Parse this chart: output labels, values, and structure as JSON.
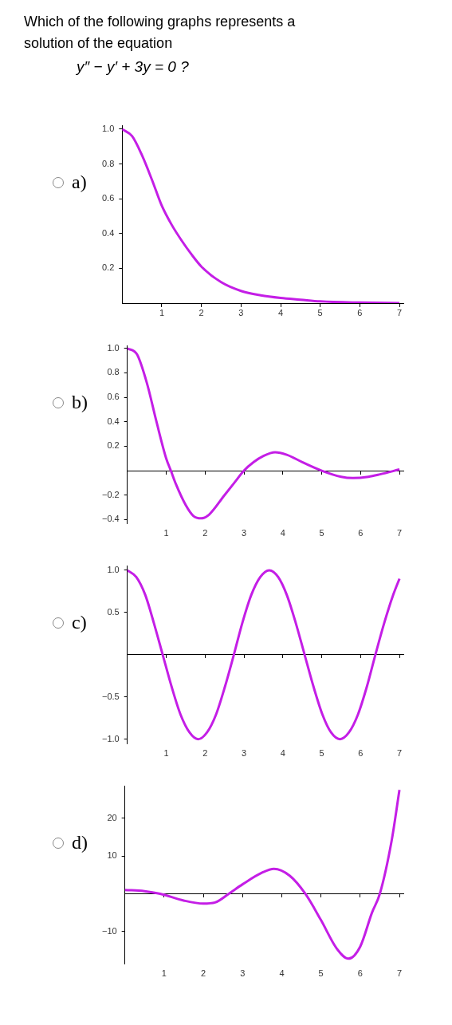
{
  "chart_data": [
    {
      "type": "line",
      "title": "Which of the following graphs represents a solution of the equation",
      "subtitle": "y″ − y′ + 3y = 0 ?",
      "annotations": [
        "a)"
      ],
      "marker": "none",
      "xlim": [
        0,
        7.1
      ],
      "ylim": [
        0,
        1.02
      ],
      "xticks": [
        1,
        2,
        3,
        4,
        5,
        6,
        7
      ],
      "yticks": [
        {
          "value": 0.2,
          "label": "0.2"
        },
        {
          "value": 0.4,
          "label": "0.4"
        },
        {
          "value": 0.6,
          "label": "0.6"
        },
        {
          "value": 0.8,
          "label": "0.8"
        },
        {
          "value": 1,
          "label": "1.0"
        }
      ],
      "series": [
        {
          "color": "#c41ee6",
          "x": [
            0,
            0.25,
            0.5,
            0.75,
            1,
            1.25,
            1.5,
            1.75,
            2,
            2.5,
            3,
            3.5,
            4,
            4.5,
            5,
            6,
            7
          ],
          "values": [
            1,
            0.96,
            0.85,
            0.71,
            0.56,
            0.45,
            0.36,
            0.28,
            0.21,
            0.12,
            0.07,
            0.045,
            0.03,
            0.02,
            0.01,
            0.003,
            0
          ]
        }
      ]
    },
    {
      "type": "line",
      "annotations": [
        "b)"
      ],
      "marker": "none",
      "xlim": [
        0,
        7.1
      ],
      "ylim": [
        -0.43,
        1.02
      ],
      "xticks": [
        1,
        2,
        3,
        4,
        5,
        6,
        7
      ],
      "yticks": [
        {
          "value": -0.4,
          "label": "−0.4"
        },
        {
          "value": -0.2,
          "label": "−0.2"
        },
        {
          "value": 0.2,
          "label": "0.2"
        },
        {
          "value": 0.4,
          "label": "0.4"
        },
        {
          "value": 0.6,
          "label": "0.6"
        },
        {
          "value": 0.8,
          "label": "0.8"
        },
        {
          "value": 1,
          "label": "1.0"
        }
      ],
      "series": [
        {
          "color": "#c41ee6",
          "x": [
            0,
            0.25,
            0.5,
            0.75,
            1,
            1.12,
            1.25,
            1.5,
            1.7,
            1.9,
            2.1,
            2.5,
            2.75,
            3,
            3.25,
            3.5,
            3.8,
            4.1,
            4.5,
            5,
            5.5,
            5.8,
            6.2,
            6.5,
            7
          ],
          "values": [
            1,
            0.95,
            0.72,
            0.4,
            0.1,
            0,
            -0.11,
            -0.28,
            -0.37,
            -0.39,
            -0.36,
            -0.2,
            -0.1,
            0,
            0.07,
            0.12,
            0.15,
            0.13,
            0.07,
            0,
            -0.05,
            -0.06,
            -0.05,
            -0.03,
            0.01
          ]
        }
      ]
    },
    {
      "type": "line",
      "annotations": [
        "c)"
      ],
      "marker": "none",
      "xlim": [
        0,
        7.1
      ],
      "ylim": [
        -1.05,
        1.05
      ],
      "xticks": [
        1,
        2,
        3,
        4,
        5,
        6,
        7
      ],
      "yticks": [
        {
          "value": -1,
          "label": "−1.0"
        },
        {
          "value": -0.5,
          "label": "−0.5"
        },
        {
          "value": 0.5,
          "label": "0.5"
        },
        {
          "value": 1,
          "label": "1.0"
        }
      ],
      "series": [
        {
          "color": "#c41ee6",
          "x": [
            0,
            0.23,
            0.46,
            0.68,
            0.91,
            1.14,
            1.37,
            1.6,
            1.82,
            2.05,
            2.28,
            2.51,
            2.74,
            2.96,
            3.19,
            3.42,
            3.65,
            3.88,
            4.1,
            4.33,
            4.56,
            4.79,
            5.02,
            5.24,
            5.47,
            5.7,
            5.93,
            6.16,
            6.38,
            6.61,
            6.84,
            7
          ],
          "values": [
            1,
            0.92,
            0.71,
            0.38,
            0,
            -0.38,
            -0.71,
            -0.92,
            -1,
            -0.92,
            -0.71,
            -0.38,
            0,
            0.38,
            0.71,
            0.92,
            1,
            0.92,
            0.71,
            0.38,
            0,
            -0.38,
            -0.71,
            -0.92,
            -1,
            -0.92,
            -0.71,
            -0.38,
            0,
            0.38,
            0.71,
            0.9
          ]
        }
      ]
    },
    {
      "type": "line",
      "annotations": [
        "d)"
      ],
      "marker": "none",
      "xlim": [
        0,
        7.1
      ],
      "ylim": [
        -18.5,
        28.5
      ],
      "xticks": [
        1,
        2,
        3,
        4,
        5,
        6,
        7
      ],
      "yticks": [
        {
          "value": -10,
          "label": "−10"
        },
        10,
        20
      ],
      "series": [
        {
          "color": "#c41ee6",
          "x": [
            0,
            0.5,
            0.9,
            1.5,
            2,
            2.3,
            2.65,
            3,
            3.5,
            3.8,
            4.2,
            4.6,
            5,
            5.4,
            5.7,
            6,
            6.3,
            6.5,
            6.8,
            7
          ],
          "values": [
            1,
            0.7,
            0,
            -1.8,
            -2.6,
            -2.3,
            0,
            2.5,
            5.6,
            6.6,
            4.8,
            0,
            -7,
            -14.5,
            -17.2,
            -14,
            -5,
            0,
            14,
            27.5
          ]
        }
      ]
    }
  ]
}
